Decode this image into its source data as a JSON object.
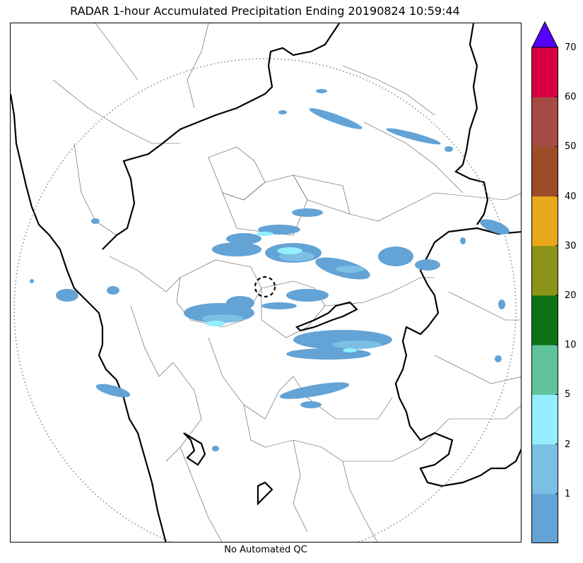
{
  "title": "RADAR 1-hour Accumulated Precipitation Ending 20190824 10:59:44",
  "footer_note": "No Automated QC",
  "colorbar": {
    "extend": "max",
    "extend_color": "#5500ff",
    "bins": [
      {
        "color": "#63a3d6"
      },
      {
        "color": "#7bbfe4"
      },
      {
        "color": "#93eeff"
      },
      {
        "color": "#5ec39a"
      },
      {
        "color": "#0e7215"
      },
      {
        "color": "#8b9318"
      },
      {
        "color": "#e8a81a"
      },
      {
        "color": "#9b4d28"
      },
      {
        "color": "#a64a44"
      },
      {
        "color": "#d60041"
      }
    ],
    "tick_labels": [
      "1",
      "2",
      "5",
      "10",
      "20",
      "30",
      "40",
      "50",
      "60",
      "70"
    ]
  },
  "map": {
    "range_ring_color": "#888888",
    "border_color": "#000000",
    "district_color": "#555555",
    "precip_colors": {
      "light": "#63a3d6",
      "moderate": "#7bbfe4",
      "heavy": "#93eeff"
    }
  }
}
